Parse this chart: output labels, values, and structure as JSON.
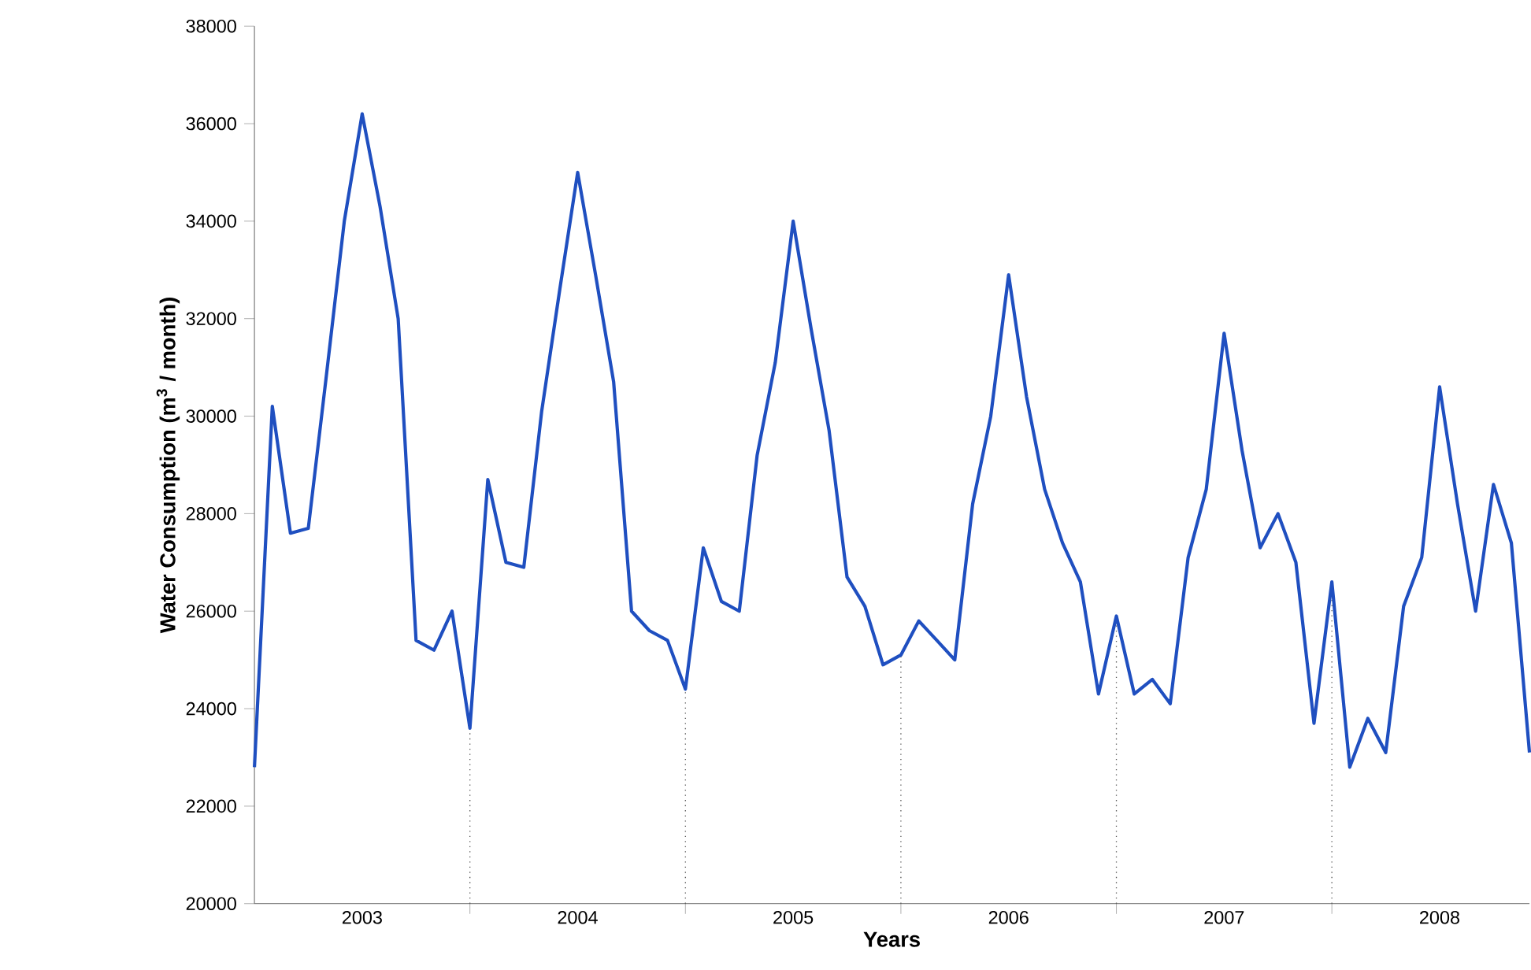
{
  "chart_data": {
    "type": "line",
    "xlabel": "Years",
    "ylabel": "Water Consumption (m$^{3}$ / month)",
    "x": [
      2003.0,
      2003.083,
      2003.167,
      2003.25,
      2003.333,
      2003.417,
      2003.5,
      2003.583,
      2003.667,
      2003.75,
      2003.833,
      2003.917,
      2004.0,
      2004.083,
      2004.167,
      2004.25,
      2004.333,
      2004.417,
      2004.5,
      2004.583,
      2004.667,
      2004.75,
      2004.833,
      2004.917,
      2005.0,
      2005.083,
      2005.167,
      2005.25,
      2005.333,
      2005.417,
      2005.5,
      2005.583,
      2005.667,
      2005.75,
      2005.833,
      2005.917,
      2006.0,
      2006.083,
      2006.167,
      2006.25,
      2006.333,
      2006.417,
      2006.5,
      2006.583,
      2006.667,
      2006.75,
      2006.833,
      2006.917,
      2007.0,
      2007.083,
      2007.167,
      2007.25,
      2007.333,
      2007.417,
      2007.5,
      2007.583,
      2007.667,
      2007.75,
      2007.833,
      2007.917,
      2008.0,
      2008.083,
      2008.167,
      2008.25,
      2008.333,
      2008.417,
      2008.5,
      2008.583,
      2008.667,
      2008.75,
      2008.833,
      2008.917
    ],
    "series": [
      {
        "color": "#1f4fc0",
        "values": [
          22800,
          30200,
          27600,
          27700,
          30800,
          34000,
          36200,
          34300,
          32000,
          25400,
          25200,
          26000,
          23600,
          28700,
          27000,
          26900,
          30100,
          32600,
          35000,
          32900,
          30700,
          26000,
          25600,
          25400,
          24400,
          27300,
          26200,
          26000,
          29200,
          31100,
          34000,
          31800,
          29700,
          26700,
          26100,
          24900,
          25100,
          25800,
          25400,
          25000,
          28200,
          30000,
          32900,
          30400,
          28500,
          27400,
          26600,
          24300,
          25900,
          24300,
          24600,
          24100,
          27100,
          28500,
          31700,
          29300,
          27300,
          28000,
          27000,
          23700,
          26600,
          22800,
          23800,
          23100,
          26100,
          27100,
          30600,
          28200,
          26000,
          28600,
          27400,
          23100
        ]
      }
    ],
    "xlim": [
      2003.0,
      2008.917
    ],
    "ylim": [
      20000,
      38000
    ],
    "yticks": [
      20000,
      22000,
      24000,
      26000,
      28000,
      30000,
      32000,
      34000,
      36000,
      38000
    ],
    "xticks": [
      {
        "value": 2003.5,
        "label": "2003"
      },
      {
        "value": 2004,
        "label": null
      },
      {
        "value": 2004.5,
        "label": "2004"
      },
      {
        "value": 2005,
        "label": null
      },
      {
        "value": 2005.5,
        "label": "2005"
      },
      {
        "value": 2006,
        "label": null
      },
      {
        "value": 2006.5,
        "label": "2006"
      },
      {
        "value": 2007,
        "label": null
      },
      {
        "value": 2007.5,
        "label": "2007"
      },
      {
        "value": 2008,
        "label": null
      },
      {
        "value": 2008.5,
        "label": "2008"
      }
    ],
    "ref_lines": [
      {
        "axis": "x",
        "value": 2004,
        "color": "#555555",
        "line_style": "dotted"
      },
      {
        "axis": "x",
        "value": 2005,
        "color": "#555555",
        "line_style": "dotted"
      },
      {
        "axis": "x",
        "value": 2006,
        "color": "#555555",
        "line_style": "dotted"
      },
      {
        "axis": "x",
        "value": 2007,
        "color": "#555555",
        "line_style": "dotted"
      },
      {
        "axis": "x",
        "value": 2008,
        "color": "#555555",
        "line_style": "dotted"
      }
    ],
    "grid": false,
    "marker": "none",
    "line_style": "solid"
  }
}
